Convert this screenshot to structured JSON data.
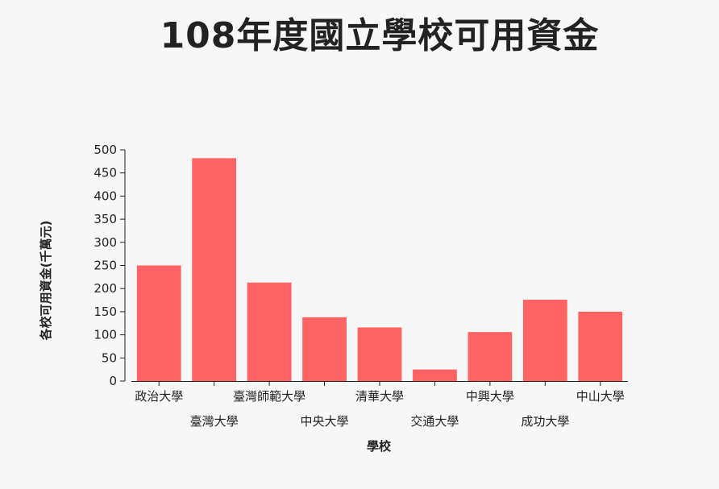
{
  "chart_data": {
    "type": "bar",
    "title": "108年度國立學校可用資金",
    "xlabel": "學校",
    "ylabel": "各校可用資金(千萬元)",
    "categories": [
      "政治大學",
      "臺灣大學",
      "臺灣師範大學",
      "中央大學",
      "清華大學",
      "交通大學",
      "中興大學",
      "成功大學",
      "中山大學"
    ],
    "values": [
      250,
      482,
      213,
      138,
      116,
      25,
      106,
      176,
      150
    ],
    "ylim": [
      0,
      500
    ],
    "yticks": [
      0,
      50,
      100,
      150,
      200,
      250,
      300,
      350,
      400,
      450,
      500
    ],
    "bar_color": "#ff6363",
    "grid": false,
    "legend": "none"
  }
}
